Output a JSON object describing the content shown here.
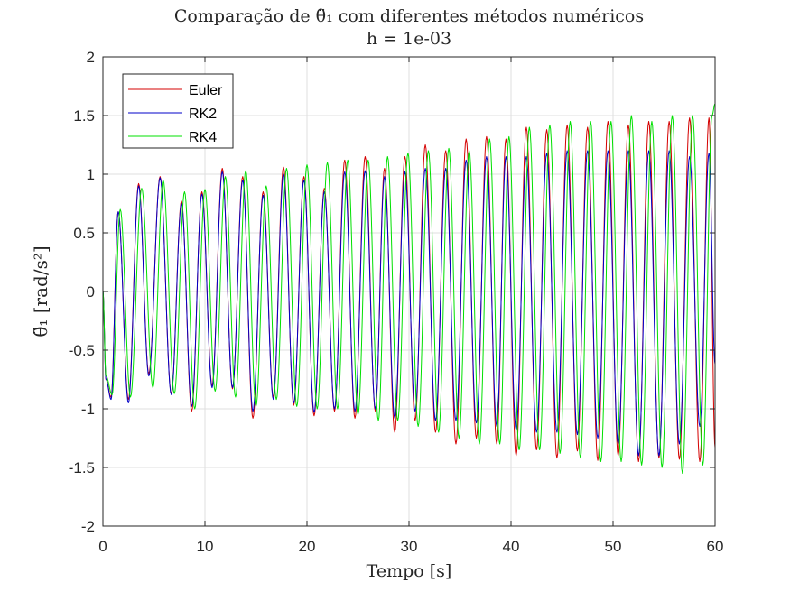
{
  "chart_data": {
    "type": "line",
    "title": "Comparação de θ̈₁ com diferentes métodos numéricos",
    "subtitle": "h = 1e-03",
    "xlabel": "Tempo [s]",
    "ylabel": "θ̈₁ [rad/s²]",
    "xlim": [
      0,
      60
    ],
    "ylim": [
      -2,
      2
    ],
    "x_ticks": [
      0,
      10,
      20,
      30,
      40,
      50,
      60
    ],
    "y_ticks": [
      -2,
      -1.5,
      -1,
      -0.5,
      0,
      0.5,
      1,
      1.5,
      2
    ],
    "x_tick_labels": [
      "0",
      "10",
      "20",
      "30",
      "40",
      "50",
      "60"
    ],
    "y_tick_labels": [
      "-2",
      "-1.5",
      "-1",
      "-0.5",
      "0",
      "0.5",
      "1",
      "1.5",
      "2"
    ],
    "grid": true,
    "legend_position": "top-left",
    "series": [
      {
        "name": "Euler",
        "color": "#d40000",
        "x": [
          0.0,
          0.3,
          0.8,
          1.5,
          2.5,
          3.5,
          4.5,
          5.6,
          6.7,
          7.7,
          8.7,
          9.7,
          10.7,
          11.7,
          12.7,
          13.7,
          14.7,
          15.7,
          16.7,
          17.7,
          18.7,
          19.7,
          20.7,
          21.7,
          22.7,
          23.7,
          24.7,
          25.7,
          26.7,
          27.6,
          28.6,
          29.6,
          30.6,
          31.6,
          32.6,
          33.6,
          34.6,
          35.6,
          36.6,
          37.6,
          38.6,
          39.5,
          40.5,
          41.5,
          42.5,
          43.5,
          44.5,
          45.5,
          46.5,
          47.5,
          48.5,
          49.5,
          50.5,
          51.5,
          52.5,
          53.5,
          54.5,
          55.5,
          56.5,
          57.5,
          58.5,
          59.4,
          60.0
        ],
        "y": [
          0.0,
          -0.75,
          -0.9,
          0.68,
          -0.92,
          0.92,
          -0.7,
          0.98,
          -0.87,
          0.77,
          -1.02,
          0.85,
          -0.8,
          1.05,
          -0.83,
          0.98,
          -1.08,
          0.85,
          -0.9,
          1.06,
          -0.97,
          0.98,
          -1.06,
          0.88,
          -1.02,
          1.12,
          -1.08,
          1.15,
          -1.02,
          1.05,
          -1.2,
          1.15,
          -1.1,
          1.25,
          -1.2,
          1.2,
          -1.3,
          1.3,
          -1.25,
          1.32,
          -1.3,
          1.3,
          -1.4,
          1.4,
          -1.35,
          1.38,
          -1.42,
          1.42,
          -1.36,
          1.4,
          -1.44,
          1.45,
          -1.4,
          1.42,
          -1.45,
          1.45,
          -1.42,
          1.45,
          -1.43,
          1.48,
          -1.45,
          1.48,
          -1.33
        ]
      },
      {
        "name": "RK2",
        "color": "#0000c8",
        "x": [
          0.0,
          0.3,
          0.8,
          1.5,
          2.5,
          3.5,
          4.5,
          5.6,
          6.7,
          7.7,
          8.7,
          9.7,
          10.7,
          11.7,
          12.7,
          13.7,
          14.7,
          15.7,
          16.7,
          17.7,
          18.7,
          19.7,
          20.7,
          21.7,
          22.7,
          23.7,
          24.7,
          25.7,
          26.7,
          27.6,
          28.6,
          29.6,
          30.6,
          31.6,
          32.6,
          33.6,
          34.6,
          35.6,
          36.6,
          37.6,
          38.6,
          39.5,
          40.5,
          41.5,
          42.5,
          43.5,
          44.5,
          45.5,
          46.5,
          47.5,
          48.5,
          49.5,
          50.5,
          51.5,
          52.5,
          53.5,
          54.5,
          55.5,
          56.5,
          57.5,
          58.5,
          59.4,
          60.0
        ],
        "y": [
          0.0,
          -0.75,
          -0.92,
          0.68,
          -0.95,
          0.9,
          -0.72,
          0.97,
          -0.88,
          0.75,
          -0.98,
          0.83,
          -0.82,
          1.02,
          -0.82,
          0.95,
          -1.02,
          0.82,
          -0.92,
          1.0,
          -0.95,
          0.95,
          -1.03,
          0.85,
          -1.0,
          1.02,
          -1.02,
          1.03,
          -1.0,
          0.98,
          -1.08,
          1.02,
          -1.02,
          1.05,
          -1.1,
          1.05,
          -1.1,
          1.12,
          -1.12,
          1.15,
          -1.15,
          1.15,
          -1.18,
          1.15,
          -1.2,
          1.18,
          -1.2,
          1.2,
          -1.22,
          1.2,
          -1.25,
          1.2,
          -1.3,
          1.2,
          -1.4,
          1.2,
          -1.4,
          1.2,
          -1.3,
          1.15,
          -1.15,
          1.18,
          -0.62
        ]
      },
      {
        "name": "RK4",
        "color": "#00e000",
        "x": [
          0.0,
          0.3,
          0.9,
          1.7,
          2.7,
          3.8,
          4.9,
          5.9,
          7.0,
          8.0,
          9.0,
          10.0,
          11.0,
          12.0,
          13.0,
          14.0,
          15.0,
          16.0,
          17.0,
          18.0,
          19.0,
          20.0,
          21.0,
          22.0,
          23.0,
          24.0,
          25.0,
          26.0,
          27.0,
          27.9,
          28.9,
          29.9,
          30.9,
          31.9,
          32.9,
          33.9,
          34.9,
          35.9,
          36.9,
          37.9,
          38.9,
          39.8,
          40.8,
          41.8,
          42.8,
          43.8,
          44.8,
          45.8,
          46.8,
          47.8,
          48.8,
          49.8,
          50.8,
          51.8,
          52.8,
          53.8,
          54.8,
          55.8,
          56.8,
          57.8,
          58.8,
          59.7,
          60.0
        ],
        "y": [
          0.0,
          -0.72,
          -0.88,
          0.7,
          -0.9,
          0.88,
          -0.82,
          0.95,
          -0.87,
          0.85,
          -1.0,
          0.87,
          -0.85,
          0.98,
          -0.9,
          1.03,
          -0.98,
          0.9,
          -0.92,
          1.05,
          -0.98,
          1.08,
          -1.0,
          1.1,
          -1.0,
          1.12,
          -1.05,
          1.12,
          -1.1,
          1.15,
          -1.1,
          1.18,
          -1.15,
          1.2,
          -1.2,
          1.22,
          -1.25,
          1.2,
          -1.3,
          1.3,
          -1.3,
          1.32,
          -1.35,
          1.4,
          -1.35,
          1.42,
          -1.38,
          1.45,
          -1.42,
          1.45,
          -1.45,
          1.45,
          -1.45,
          1.5,
          -1.48,
          1.45,
          -1.5,
          1.5,
          -1.55,
          1.5,
          -1.48,
          1.5,
          1.6
        ]
      }
    ]
  }
}
